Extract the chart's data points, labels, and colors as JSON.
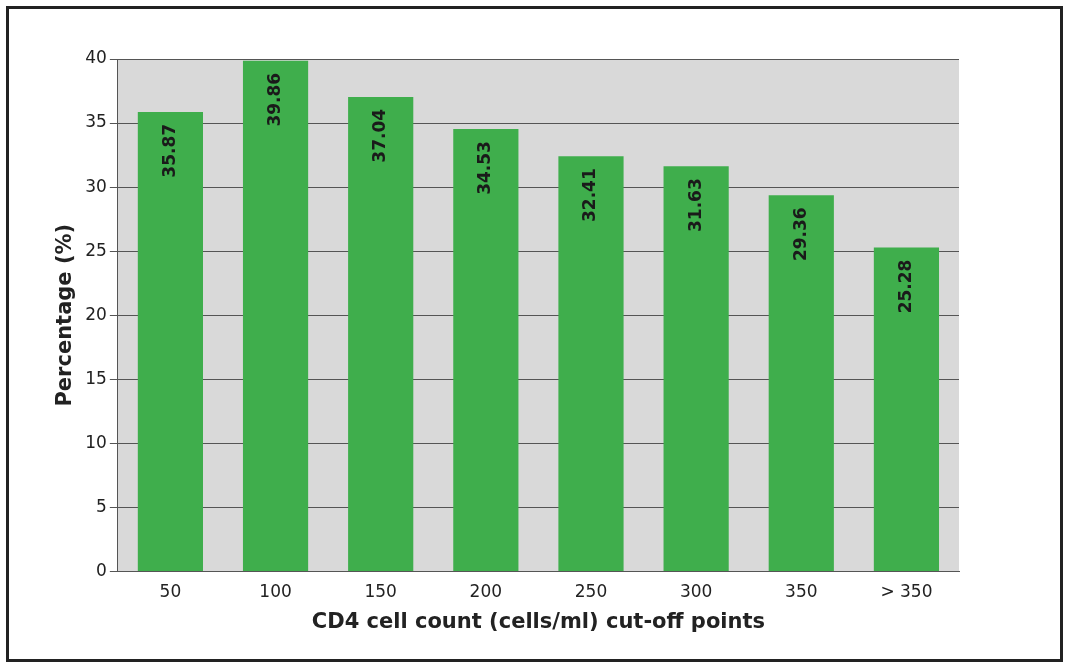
{
  "chart_data": {
    "type": "bar",
    "xlabel": "CD4 cell count (cells/ml) cut-off points",
    "ylabel": "Percentage (%)",
    "categories": [
      "50",
      "100",
      "150",
      "200",
      "250",
      "300",
      "350",
      "> 350"
    ],
    "values": [
      35.87,
      39.86,
      37.04,
      34.53,
      32.41,
      31.63,
      29.36,
      25.28
    ],
    "color": "#3fae4c",
    "ylim": [
      0,
      40
    ],
    "yticks": [
      0,
      5,
      10,
      15,
      20,
      25,
      30,
      35,
      40
    ],
    "grid": "y",
    "legend": false,
    "data_labels": true
  }
}
